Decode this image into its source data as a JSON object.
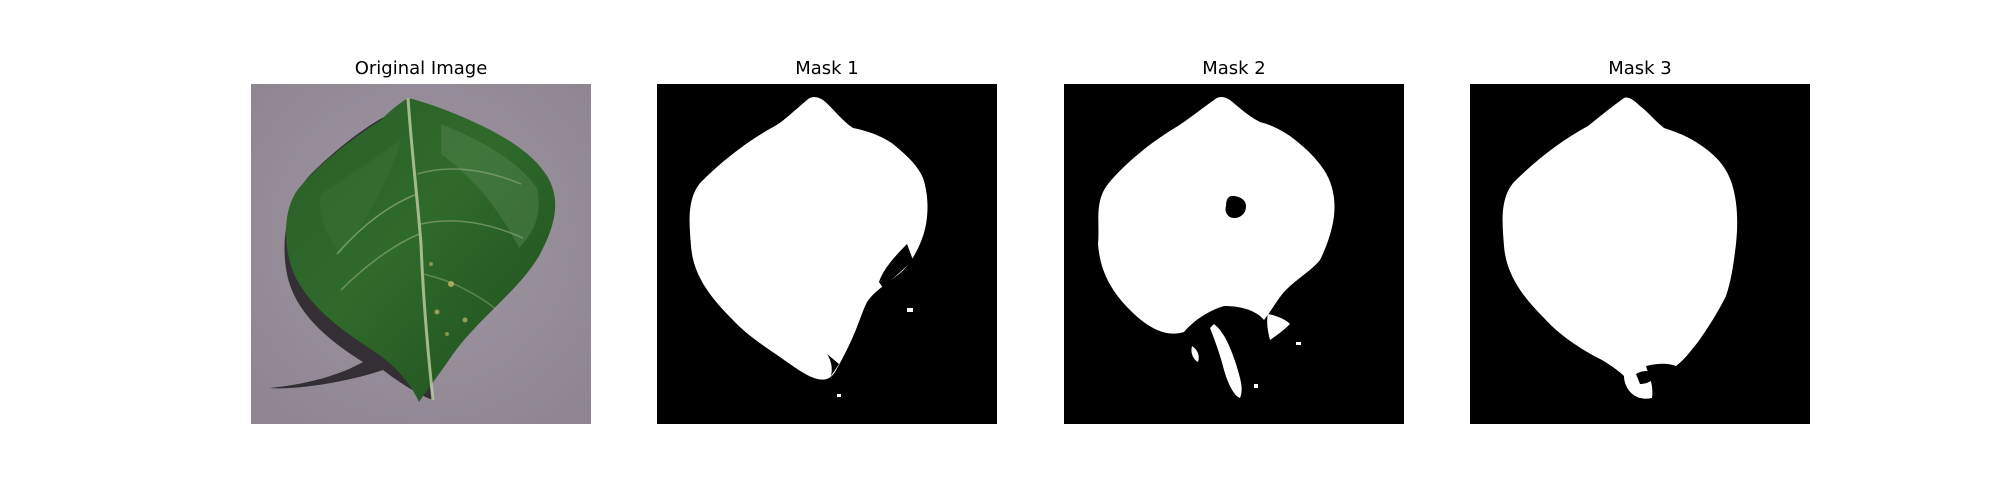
{
  "panels": [
    {
      "title": "Original Image"
    },
    {
      "title": "Mask 1"
    },
    {
      "title": "Mask 2"
    },
    {
      "title": "Mask 3"
    }
  ]
}
